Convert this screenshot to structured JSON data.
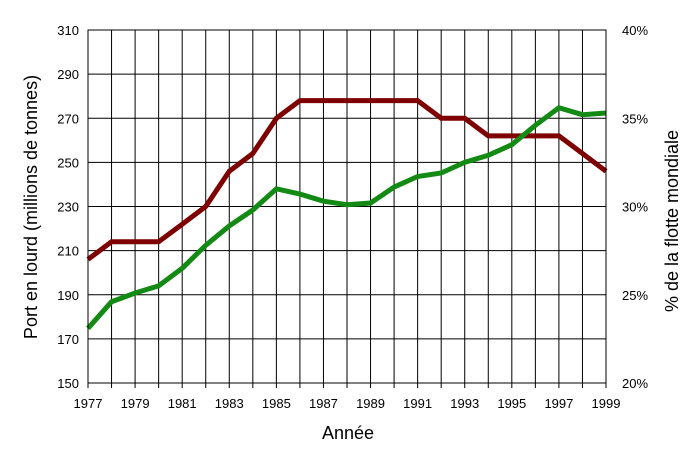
{
  "chart_data": {
    "type": "line",
    "title": "",
    "xlabel": "Année",
    "ylabel_left": "Port en lourd (millions de tonnes)",
    "ylabel_right": "% de la flotte mondiale",
    "x": [
      1977,
      1978,
      1979,
      1980,
      1981,
      1982,
      1983,
      1984,
      1985,
      1986,
      1987,
      1988,
      1989,
      1990,
      1991,
      1992,
      1993,
      1994,
      1995,
      1996,
      1997,
      1998,
      1999
    ],
    "x_tick_labels": [
      "1977",
      "1979",
      "1981",
      "1983",
      "1985",
      "1987",
      "1989",
      "1991",
      "1993",
      "1995",
      "1997",
      "1999"
    ],
    "xlim": [
      1977,
      1999
    ],
    "ylim_left": [
      150,
      310
    ],
    "y_left_ticks": [
      "150",
      "170",
      "190",
      "210",
      "230",
      "250",
      "270",
      "290",
      "310"
    ],
    "ylim_right": [
      20,
      40
    ],
    "y_right_ticks": [
      "20%",
      "25%",
      "30%",
      "35%",
      "40%"
    ],
    "grid": true,
    "legend": "none",
    "series": [
      {
        "axis": "left",
        "color": "#7f0000",
        "values": [
          206,
          214,
          214,
          214,
          222,
          230,
          246,
          254,
          270,
          278,
          278,
          278,
          278,
          278,
          278,
          270,
          270,
          262,
          262,
          262,
          262,
          254,
          246
        ]
      },
      {
        "axis": "right",
        "color": "#138a13",
        "values": [
          23.1,
          24.6,
          25.1,
          25.5,
          26.5,
          27.8,
          28.9,
          29.8,
          31.0,
          30.7,
          30.3,
          30.1,
          30.2,
          31.1,
          31.7,
          31.9,
          32.5,
          32.9,
          33.5,
          34.6,
          35.6,
          35.2,
          35.3
        ]
      }
    ]
  }
}
